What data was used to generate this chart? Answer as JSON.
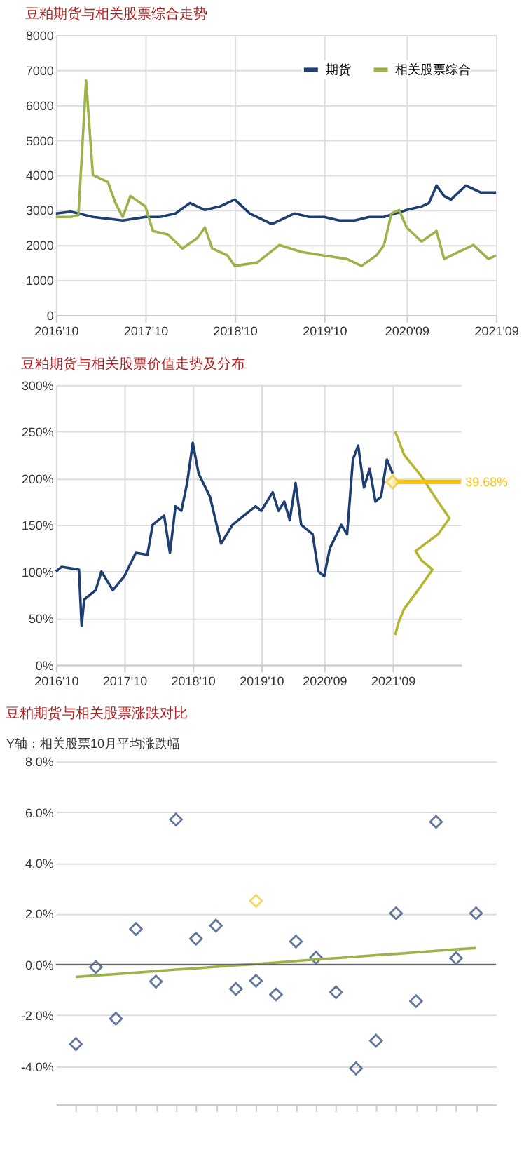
{
  "chart_data": [
    {
      "type": "line",
      "title": "豆粕期货与相关股票综合走势",
      "legend": "top right",
      "grid": true,
      "xlim": [
        "2016-10",
        "2021-09"
      ],
      "xticks": [
        {
          "value": "2016-10",
          "label": "2016'10"
        },
        {
          "value": "2017-10",
          "label": "2017'10"
        },
        {
          "value": "2018-10",
          "label": "2018'10"
        },
        {
          "value": "2019-10",
          "label": "2019'10"
        },
        {
          "value": "2020-09",
          "label": "2020'09"
        },
        {
          "value": "2021-09",
          "label": "2021'09"
        }
      ],
      "ylim": [
        0,
        8000
      ],
      "yticks": [
        0,
        1000,
        2000,
        3000,
        4000,
        5000,
        6000,
        7000,
        8000
      ],
      "series": [
        {
          "name": "期货",
          "color": "#1f3f73",
          "x": [
            "2016-10",
            "2016-12",
            "2017-01",
            "2017-03",
            "2017-05",
            "2017-07",
            "2017-10",
            "2017-12",
            "2018-02",
            "2018-04",
            "2018-06",
            "2018-08",
            "2018-10",
            "2018-12",
            "2019-03",
            "2019-06",
            "2019-08",
            "2019-10",
            "2019-12",
            "2020-02",
            "2020-04",
            "2020-06",
            "2020-09",
            "2020-11",
            "2020-12",
            "2021-01",
            "2021-02",
            "2021-03",
            "2021-05",
            "2021-07",
            "2021-09"
          ],
          "values": [
            2900,
            2950,
            2900,
            2800,
            2750,
            2700,
            2800,
            2800,
            2900,
            3200,
            3000,
            3100,
            3300,
            2900,
            2600,
            2900,
            2800,
            2800,
            2700,
            2700,
            2800,
            2800,
            3000,
            3100,
            3200,
            3700,
            3400,
            3300,
            3700,
            3500,
            3500
          ]
        },
        {
          "name": "相关股票综合",
          "color": "#9bb34a",
          "x": [
            "2016-10",
            "2016-12",
            "2017-01",
            "2017-02",
            "2017-03",
            "2017-05",
            "2017-06",
            "2017-07",
            "2017-08",
            "2017-10",
            "2017-11",
            "2018-01",
            "2018-03",
            "2018-05",
            "2018-06",
            "2018-07",
            "2018-09",
            "2018-10",
            "2019-01",
            "2019-04",
            "2019-07",
            "2019-10",
            "2020-01",
            "2020-03",
            "2020-05",
            "2020-06",
            "2020-07",
            "2020-08",
            "2020-09",
            "2020-11",
            "2021-01",
            "2021-02",
            "2021-04",
            "2021-06",
            "2021-07",
            "2021-08",
            "2021-09"
          ],
          "values": [
            2800,
            2800,
            2850,
            6700,
            4000,
            3800,
            3200,
            2800,
            3400,
            3100,
            2400,
            2300,
            1900,
            2200,
            2500,
            1900,
            1700,
            1400,
            1500,
            2000,
            1800,
            1700,
            1600,
            1400,
            1700,
            2000,
            2900,
            3000,
            2500,
            2100,
            2400,
            1600,
            1800,
            2000,
            1800,
            1600,
            1700
          ]
        }
      ]
    },
    {
      "type": "line",
      "title": "豆粕期货与相关股票价值走势及分布",
      "grid": true,
      "xlim": [
        "2016-10",
        "2022-09"
      ],
      "xticks": [
        {
          "value": "2016-10",
          "label": "2016'10"
        },
        {
          "value": "2017-10",
          "label": "2017'10"
        },
        {
          "value": "2018-10",
          "label": "2018'10"
        },
        {
          "value": "2019-10",
          "label": "2019'10"
        },
        {
          "value": "2020-09",
          "label": "2020'09"
        },
        {
          "value": "2021-09",
          "label": "2021'09"
        }
      ],
      "ylim": [
        0,
        300
      ],
      "yticks": [
        {
          "value": 0,
          "label": "0%"
        },
        {
          "value": 50,
          "label": "50%"
        },
        {
          "value": 100,
          "label": "100%"
        },
        {
          "value": 150,
          "label": "150%"
        },
        {
          "value": 200,
          "label": "200%"
        },
        {
          "value": 250,
          "label": "250%"
        },
        {
          "value": 300,
          "label": "300%"
        }
      ],
      "series": [
        {
          "color": "#1f3f73",
          "x": [
            "2016-10",
            "2016-11",
            "2017-01",
            "2017-02",
            "2017-02-15",
            "2017-03",
            "2017-05",
            "2017-06",
            "2017-08",
            "2017-10",
            "2017-12",
            "2018-02",
            "2018-03",
            "2018-05",
            "2018-06",
            "2018-07",
            "2018-08",
            "2018-09",
            "2018-10",
            "2018-11",
            "2019-01",
            "2019-03",
            "2019-05",
            "2019-07",
            "2019-09",
            "2019-10",
            "2019-12",
            "2020-01",
            "2020-02",
            "2020-03",
            "2020-04",
            "2020-05",
            "2020-07",
            "2020-08",
            "2020-09",
            "2020-10",
            "2020-12",
            "2021-01",
            "2021-02",
            "2021-03",
            "2021-04",
            "2021-05",
            "2021-06",
            "2021-07",
            "2021-08",
            "2021-09"
          ],
          "values": [
            100,
            105,
            103,
            102,
            42,
            70,
            80,
            100,
            80,
            95,
            120,
            118,
            150,
            160,
            120,
            170,
            165,
            195,
            238,
            205,
            180,
            130,
            150,
            160,
            170,
            165,
            185,
            165,
            175,
            155,
            195,
            150,
            140,
            100,
            95,
            125,
            150,
            140,
            220,
            235,
            190,
            210,
            175,
            180,
            220,
            205
          ]
        },
        {
          "color": "#b5b530",
          "x": [
            "2021-09-15",
            "2021-11",
            "2022-02",
            "2022-05",
            "2022-07",
            "2022-05",
            "2022-01",
            "2022-02",
            "2022-04",
            "2022-02",
            "2021-11",
            "2021-10",
            "2021-09-15"
          ],
          "values": [
            250,
            225,
            202,
            175,
            157,
            140,
            122,
            112,
            102,
            85,
            60,
            45,
            32
          ]
        }
      ],
      "annotations": [
        {
          "text": "39.68%",
          "x": "2021-09",
          "y": 196
        }
      ]
    },
    {
      "type": "scatter",
      "title": "豆粕期货与相关股票涨跌对比",
      "ylabel": "Y轴：相关股票10月平均涨跌幅",
      "grid": "y",
      "tick_labels": "y",
      "marker": "diamond",
      "categories": [
        null,
        null,
        null,
        null,
        null,
        null,
        null,
        null,
        null,
        null,
        null,
        null,
        null,
        null,
        null,
        null,
        null,
        null,
        null,
        null,
        null
      ],
      "ylim": [
        -5.5,
        8
      ],
      "yticks": [
        {
          "value": -4,
          "label": "-4.0%"
        },
        {
          "value": -2,
          "label": "-2.0%"
        },
        {
          "value": 0,
          "label": "0.0%"
        },
        {
          "value": 2,
          "label": "2.0%"
        },
        {
          "value": 4,
          "label": "4.0%"
        },
        {
          "value": 6,
          "label": "6.0%"
        },
        {
          "value": 8,
          "label": "8.0%"
        }
      ],
      "ref_lines": [
        {
          "axis": "y",
          "value": 0,
          "color": "#666666"
        }
      ],
      "series": [
        {
          "color": "#1f3f73",
          "values": [
            -3.13,
            -0.1,
            -2.13,
            1.4,
            -0.67,
            5.71,
            1.02,
            1.53,
            -0.96,
            -0.64,
            -1.18,
            0.91,
            0.27,
            -1.09,
            -4.09,
            -3.0,
            2.02,
            -1.44,
            5.62,
            0.25,
            2.02
          ]
        },
        {
          "color": "#f5c518",
          "values": [
            null,
            null,
            null,
            null,
            null,
            null,
            null,
            null,
            null,
            2.51,
            null,
            null,
            null,
            null,
            null,
            null,
            null,
            null,
            null,
            null,
            null
          ]
        },
        {
          "type": "line",
          "marker": "none",
          "color": "#9bb34a",
          "values": [
            -0.49,
            -0.43,
            -0.38,
            -0.32,
            -0.26,
            -0.2,
            -0.15,
            -0.09,
            -0.03,
            0.02,
            0.08,
            0.14,
            0.2,
            0.25,
            0.31,
            0.37,
            0.42,
            0.48,
            0.54,
            0.6,
            0.65
          ]
        }
      ]
    }
  ]
}
